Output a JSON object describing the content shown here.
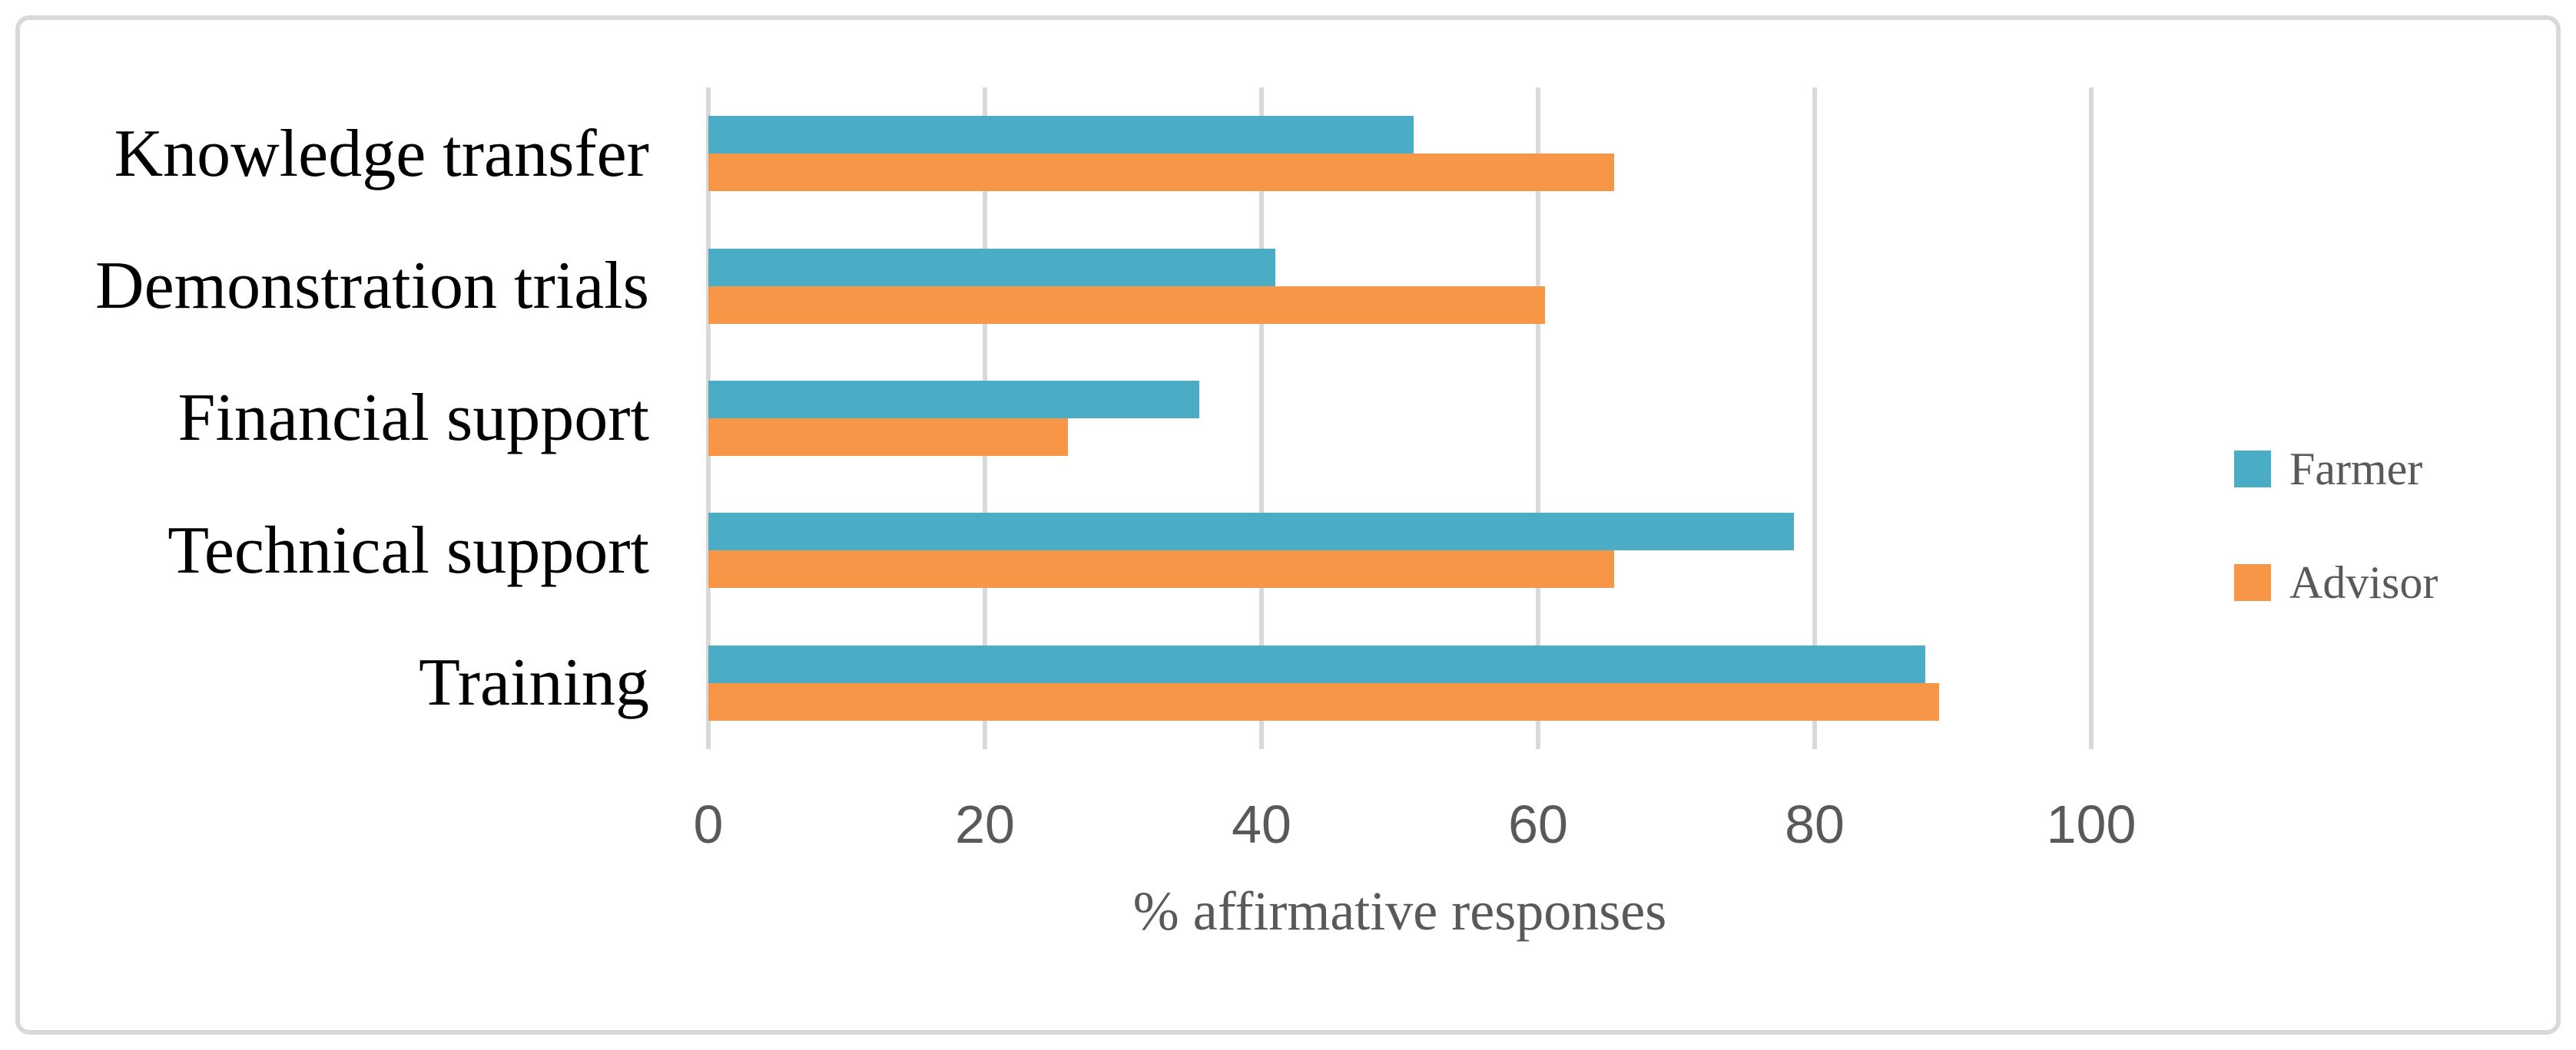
{
  "chart_data": {
    "type": "bar",
    "orientation": "horizontal",
    "categories": [
      "Knowledge transfer",
      "Demonstration trials",
      "Financial support",
      "Technical support",
      "Training"
    ],
    "series": [
      {
        "name": "Farmer",
        "color": "#4BACC6",
        "values": [
          51,
          41,
          35.5,
          78.5,
          88
        ]
      },
      {
        "name": "Advisor",
        "color": "#F79646",
        "values": [
          65.5,
          60.5,
          26,
          65.5,
          89
        ]
      }
    ],
    "title": "",
    "xlabel": "% affirmative responses",
    "ylabel": "",
    "xlim": [
      0,
      100
    ],
    "xticks": [
      0,
      20,
      40,
      60,
      80,
      100
    ],
    "grid": "vertical-major",
    "legend_position": "right"
  },
  "style": {
    "gridline_color": "#D9D9D9",
    "border_color": "#D9D9D9",
    "tick_text_color": "#595959",
    "category_text_color": "#000000",
    "background": "#ffffff"
  }
}
